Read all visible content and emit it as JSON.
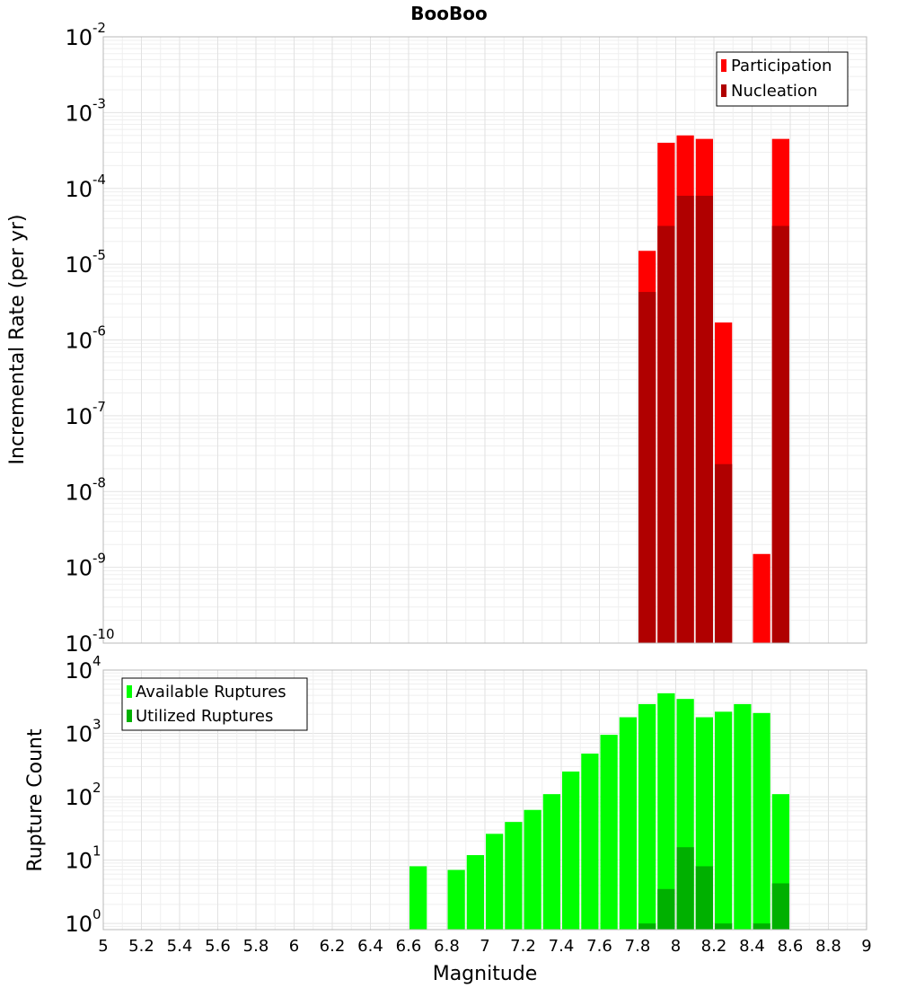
{
  "chart_data": [
    {
      "type": "bar",
      "title": "BooBoo",
      "xlabel": "",
      "ylabel": "Incremental Rate (per yr)",
      "yscale": "log",
      "ylim": [
        1e-10,
        0.01
      ],
      "xlim": [
        5,
        9
      ],
      "grid": true,
      "legend_position": "top-right",
      "y_ticks": [
        {
          "base": "10",
          "exp": "-10"
        },
        {
          "base": "10",
          "exp": "-9"
        },
        {
          "base": "10",
          "exp": "-8"
        },
        {
          "base": "10",
          "exp": "-7"
        },
        {
          "base": "10",
          "exp": "-6"
        },
        {
          "base": "10",
          "exp": "-5"
        },
        {
          "base": "10",
          "exp": "-4"
        },
        {
          "base": "10",
          "exp": "-3"
        },
        {
          "base": "10",
          "exp": "-2"
        }
      ],
      "series": [
        {
          "name": "Participation",
          "color": "#ff0000",
          "x": [
            7.85,
            7.95,
            8.05,
            8.15,
            8.25,
            8.45,
            8.55
          ],
          "values": [
            1.5e-05,
            0.0004,
            0.0005,
            0.00045,
            1.7e-06,
            1.5e-09,
            0.00045
          ]
        },
        {
          "name": "Nucleation",
          "color": "#b00000",
          "x": [
            7.85,
            7.95,
            8.05,
            8.15,
            8.25,
            8.55
          ],
          "values": [
            4.3e-06,
            3.2e-05,
            8e-05,
            8e-05,
            2.3e-08,
            3.2e-05
          ]
        }
      ]
    },
    {
      "type": "bar",
      "title": "",
      "xlabel": "Magnitude",
      "ylabel": "Rupture Count",
      "yscale": "log",
      "ylim": [
        0.8,
        10000
      ],
      "xlim": [
        5,
        9
      ],
      "grid": true,
      "legend_position": "top-left",
      "x_ticks": [
        "5",
        "5.2",
        "5.4",
        "5.6",
        "5.8",
        "6",
        "6.2",
        "6.4",
        "6.6",
        "6.8",
        "7",
        "7.2",
        "7.4",
        "7.6",
        "7.8",
        "8",
        "8.2",
        "8.4",
        "8.6",
        "8.8",
        "9"
      ],
      "y_ticks": [
        {
          "base": "10",
          "exp": "0"
        },
        {
          "base": "10",
          "exp": "1"
        },
        {
          "base": "10",
          "exp": "2"
        },
        {
          "base": "10",
          "exp": "3"
        },
        {
          "base": "10",
          "exp": "4"
        }
      ],
      "series": [
        {
          "name": "Available Ruptures",
          "color": "#00ff00",
          "x": [
            6.65,
            6.85,
            6.95,
            7.05,
            7.15,
            7.25,
            7.35,
            7.45,
            7.55,
            7.65,
            7.75,
            7.85,
            7.95,
            8.05,
            8.15,
            8.25,
            8.35,
            8.45,
            8.55
          ],
          "values": [
            8,
            7,
            12,
            26,
            40,
            62,
            110,
            250,
            480,
            950,
            1800,
            2900,
            4300,
            3500,
            1800,
            2200,
            2900,
            2100,
            110
          ]
        },
        {
          "name": "Utilized Ruptures",
          "color": "#00b000",
          "x": [
            7.85,
            7.95,
            8.05,
            8.15,
            8.25,
            8.45,
            8.55
          ],
          "values": [
            1,
            3.5,
            16,
            8,
            1,
            1,
            4.3
          ]
        }
      ]
    }
  ]
}
